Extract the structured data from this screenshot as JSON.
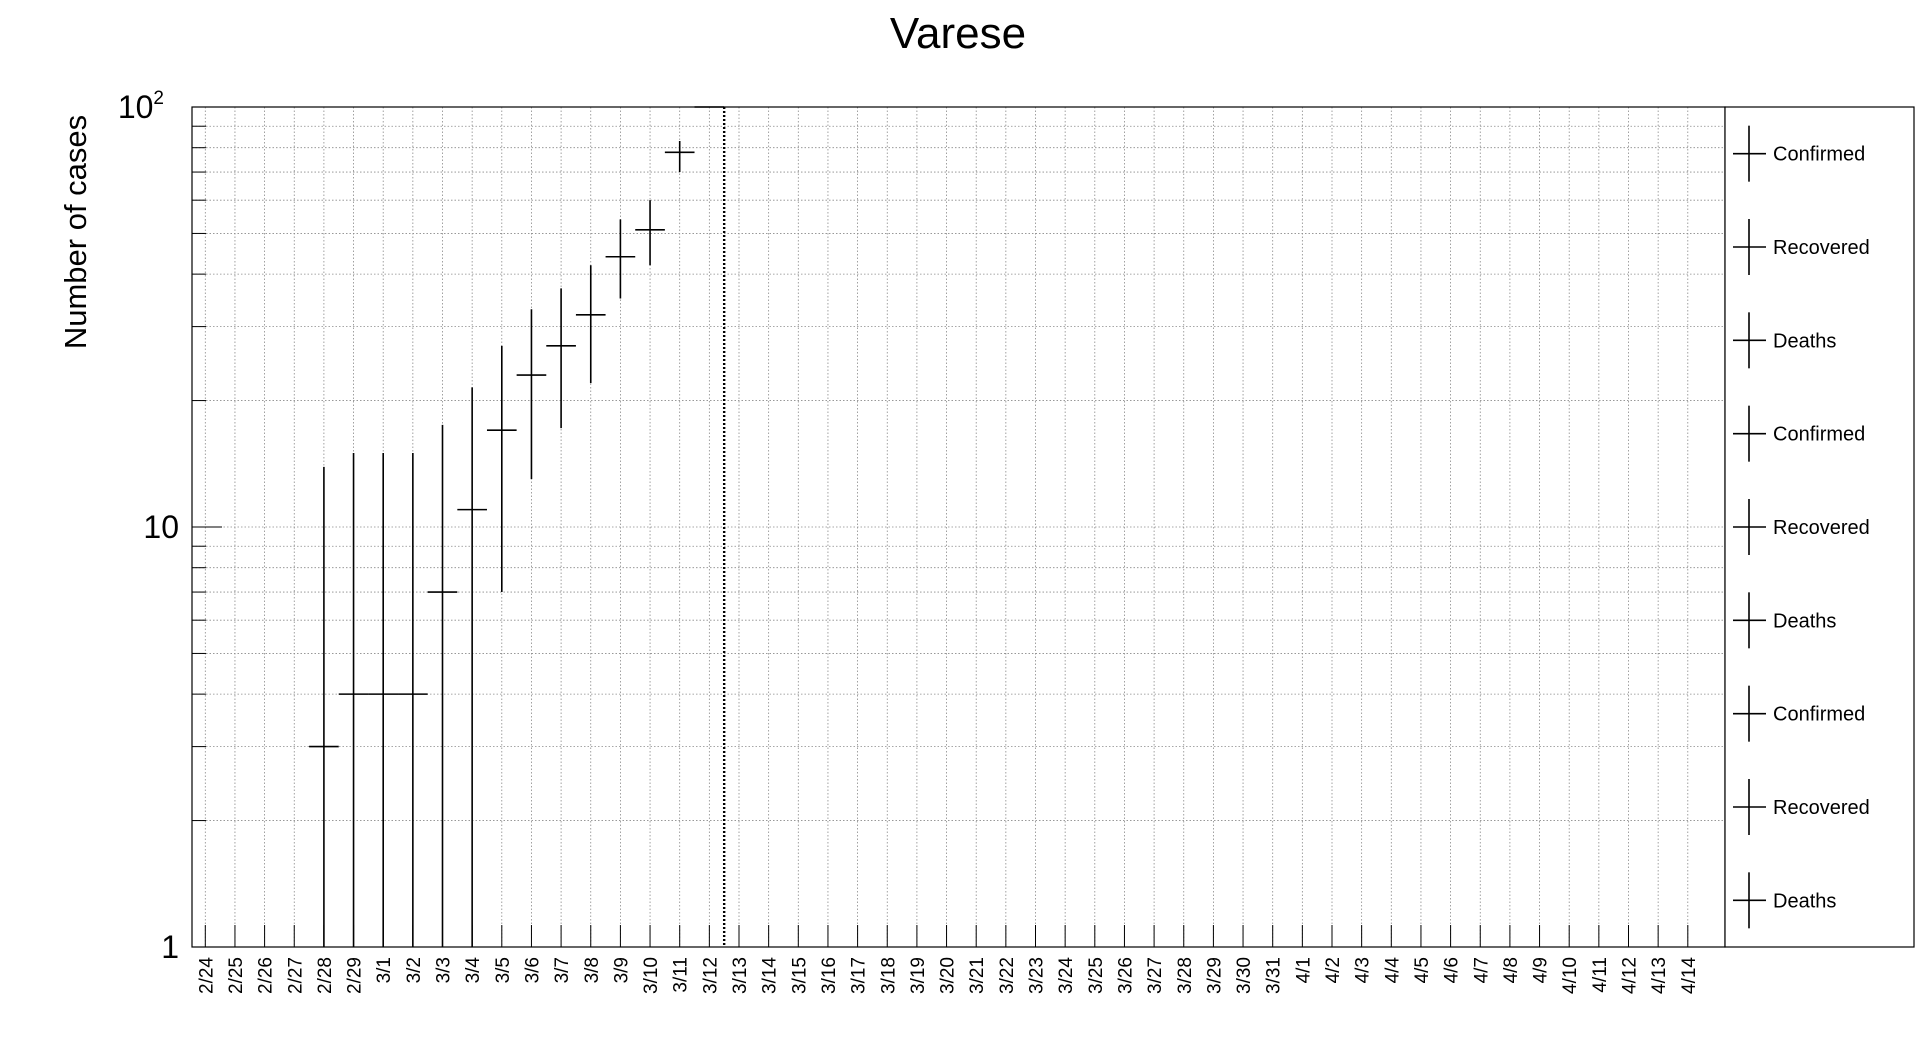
{
  "chart_data": {
    "type": "scatter",
    "title": "Varese",
    "ylabel": "Number of cases",
    "xlabel": "",
    "y_scale": "log",
    "ylim": [
      1,
      100
    ],
    "y_ticks": [
      {
        "value": 1,
        "label": "1",
        "sup": ""
      },
      {
        "value": 10,
        "label": "10",
        "sup": ""
      },
      {
        "value": 100,
        "label": "10",
        "sup": "2"
      }
    ],
    "grid": true,
    "categories": [
      "2/24",
      "2/25",
      "2/26",
      "2/27",
      "2/28",
      "2/29",
      "3/1",
      "3/2",
      "3/3",
      "3/4",
      "3/5",
      "3/6",
      "3/7",
      "3/8",
      "3/9",
      "3/10",
      "3/11",
      "3/12",
      "3/13",
      "3/14",
      "3/15",
      "3/16",
      "3/17",
      "3/18",
      "3/19",
      "3/20",
      "3/21",
      "3/22",
      "3/23",
      "3/24",
      "3/25",
      "3/26",
      "3/27",
      "3/28",
      "3/29",
      "3/30",
      "3/31",
      "4/1",
      "4/2",
      "4/3",
      "4/4",
      "4/5",
      "4/6",
      "4/7",
      "4/8",
      "4/9",
      "4/10",
      "4/11",
      "4/12",
      "4/13",
      "4/14"
    ],
    "series": [
      {
        "name": "Confirmed",
        "points": [
          {
            "x": "2/28",
            "y": 3,
            "y_low": 1,
            "y_high": 13.9
          },
          {
            "x": "2/29",
            "y": 4,
            "y_low": 1,
            "y_high": 15
          },
          {
            "x": "3/1",
            "y": 4,
            "y_low": 1,
            "y_high": 15
          },
          {
            "x": "3/2",
            "y": 4,
            "y_low": 1,
            "y_high": 15
          },
          {
            "x": "3/3",
            "y": 7,
            "y_low": 1,
            "y_high": 17.5
          },
          {
            "x": "3/4",
            "y": 11,
            "y_low": 1,
            "y_high": 21.5
          },
          {
            "x": "3/5",
            "y": 17,
            "y_low": 7,
            "y_high": 27
          },
          {
            "x": "3/6",
            "y": 23,
            "y_low": 13,
            "y_high": 33
          },
          {
            "x": "3/7",
            "y": 27,
            "y_low": 17.2,
            "y_high": 37
          },
          {
            "x": "3/8",
            "y": 32,
            "y_low": 22,
            "y_high": 42
          },
          {
            "x": "3/9",
            "y": 44,
            "y_low": 35,
            "y_high": 54
          },
          {
            "x": "3/10",
            "y": 51,
            "y_low": 42,
            "y_high": 60
          },
          {
            "x": "3/11",
            "y": 78,
            "y_low": 70,
            "y_high": 83
          },
          {
            "x": "3/12",
            "y": 100,
            "y_low": 100,
            "y_high": 100
          }
        ]
      }
    ],
    "marker_line": {
      "x": "3/12",
      "position": "right-edge",
      "style": "dotted"
    },
    "legend": {
      "placement": "right",
      "entries": [
        "Confirmed",
        "Recovered",
        "Deaths",
        "Confirmed",
        "Recovered",
        "Deaths",
        "Confirmed",
        "Recovered",
        "Deaths"
      ]
    }
  }
}
